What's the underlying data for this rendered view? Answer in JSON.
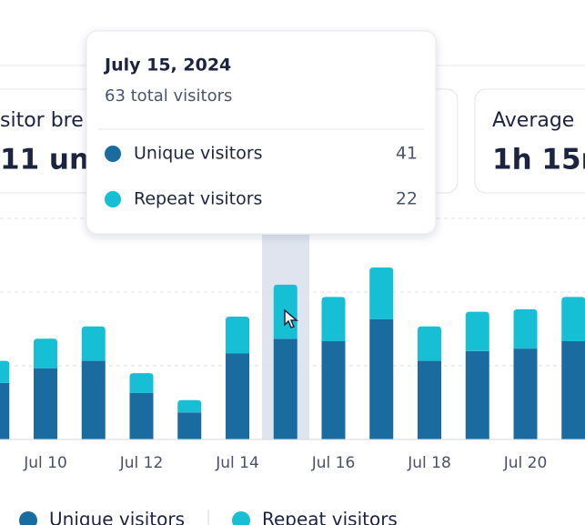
{
  "cards": [
    {
      "label": "sitor bre",
      "value": "11 uni"
    },
    {
      "label": "Average",
      "value": "1h 15m"
    }
  ],
  "chart_data": {
    "type": "stacked-bar",
    "categories": [
      null,
      "Jul 10",
      null,
      "Jul 12",
      null,
      "Jul 14",
      null,
      "Jul 16",
      null,
      "Jul 18",
      null,
      "Jul 20",
      null
    ],
    "series": [
      {
        "name": "Unique visitors",
        "color": "#1a6ca0",
        "values": [
          23,
          29,
          32,
          19,
          11,
          35,
          41,
          40,
          49,
          32,
          36,
          37,
          40
        ]
      },
      {
        "name": "Repeat visitors",
        "color": "#17bfd4",
        "values": [
          9,
          12,
          14,
          8,
          5,
          15,
          22,
          18,
          21,
          14,
          16,
          16,
          18
        ]
      }
    ],
    "ylim": [
      0,
      90
    ],
    "yticks": [
      30,
      60,
      90
    ],
    "grid": true,
    "tooltip": {
      "title": "July 15, 2024",
      "subtitle": "63 total visitors"
    }
  }
}
